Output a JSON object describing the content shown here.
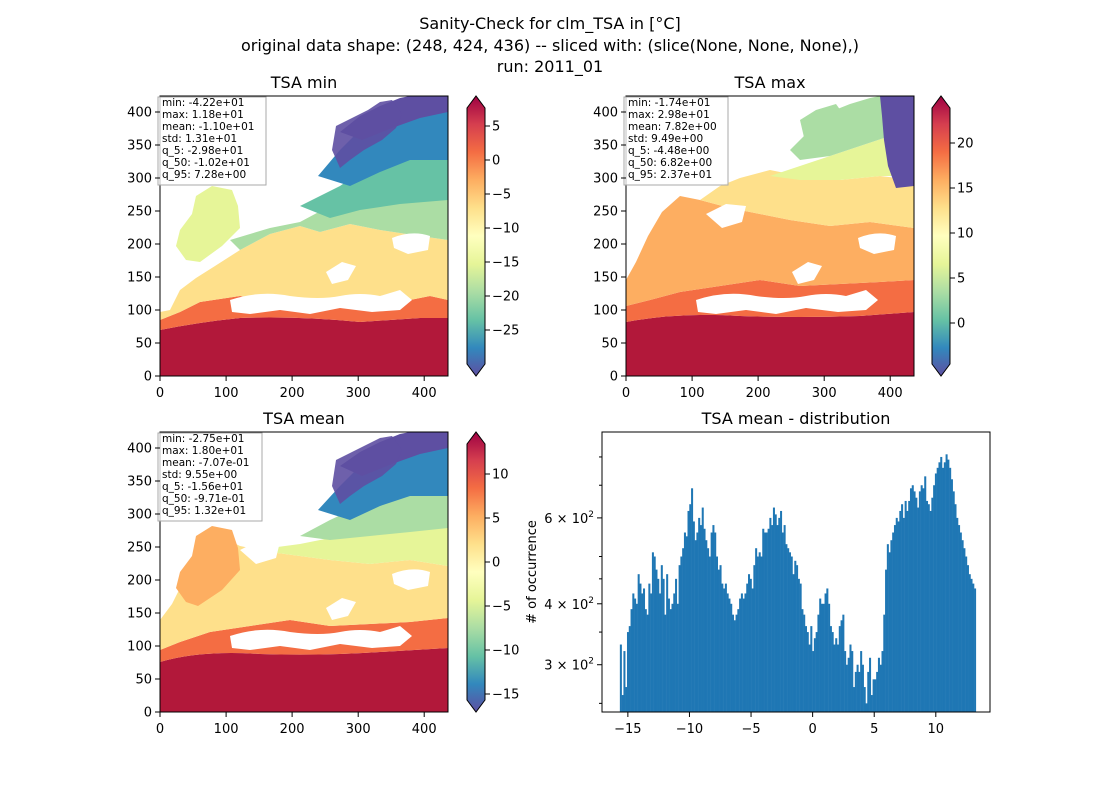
{
  "figure": {
    "title_line1": "Sanity-Check for clm_TSA in [°C]",
    "title_line2": "original data shape: (248, 424, 436) -- sliced with: (slice(None, None, None),)",
    "title_line3": "run: 2011_01"
  },
  "chart_data": [
    {
      "type": "heatmap",
      "title": "TSA min",
      "xticks": [
        0,
        100,
        200,
        300,
        400
      ],
      "yticks": [
        0,
        50,
        100,
        150,
        200,
        250,
        300,
        350,
        400
      ],
      "xlim": [
        0,
        436
      ],
      "ylim": [
        0,
        424
      ],
      "colormap": "Spectral_r",
      "colorbar": {
        "range": [
          -30,
          8
        ],
        "ticks": [
          5,
          0,
          -5,
          -10,
          -15,
          -20,
          -25
        ],
        "ticklabels": [
          "5",
          "0",
          "−5",
          "−10",
          "−15",
          "−20",
          "−25"
        ]
      },
      "stats": [
        "min: -4.22e+01",
        "max: 1.18e+01",
        "mean: -1.10e+01",
        "std: 1.31e+01",
        "q_5: -2.98e+01",
        "q_50: -1.02e+01",
        "q_95: 7.28e+00"
      ]
    },
    {
      "type": "heatmap",
      "title": "TSA max",
      "xticks": [
        0,
        100,
        200,
        300,
        400
      ],
      "yticks": [
        0,
        50,
        100,
        150,
        200,
        250,
        300,
        350,
        400
      ],
      "xlim": [
        0,
        436
      ],
      "ylim": [
        0,
        424
      ],
      "colormap": "Spectral_r",
      "colorbar": {
        "range": [
          -4.5,
          24
        ],
        "ticks": [
          20,
          15,
          10,
          5,
          0
        ],
        "ticklabels": [
          "20",
          "15",
          "10",
          "5",
          "0"
        ]
      },
      "stats": [
        "min: -1.74e+01",
        "max: 2.98e+01",
        "mean: 7.82e+00",
        "std: 9.49e+00",
        "q_5: -4.48e+00",
        "q_50: 6.82e+00",
        "q_95: 2.37e+01"
      ]
    },
    {
      "type": "heatmap",
      "title": "TSA mean",
      "xticks": [
        0,
        100,
        200,
        300,
        400
      ],
      "yticks": [
        0,
        50,
        100,
        150,
        200,
        250,
        300,
        350,
        400
      ],
      "xlim": [
        0,
        436
      ],
      "ylim": [
        0,
        424
      ],
      "colormap": "Spectral_r",
      "colorbar": {
        "range": [
          -16.7,
          14
        ],
        "ticks": [
          10,
          5,
          0,
          -5,
          -10,
          -15
        ],
        "ticklabels": [
          "10",
          "5",
          "0",
          "−5",
          "−10",
          "−15"
        ]
      },
      "stats": [
        "min: -2.75e+01",
        "max: 1.80e+01",
        "mean: -7.07e-01",
        "std: 9.55e+00",
        "q_5: -1.56e+01",
        "q_50: -9.71e-01",
        "q_95: 1.32e+01"
      ]
    },
    {
      "type": "bar",
      "title": "TSA mean - distribution",
      "ylabel": "# of occurrence",
      "xlabel": "",
      "yscale": "log",
      "xlim": [
        -17.1,
        14.4
      ],
      "ylim": [
        240,
        900
      ],
      "xticks": [
        -15,
        -10,
        -5,
        0,
        5,
        10
      ],
      "xticklabels": [
        "−15",
        "−10",
        "−5",
        "0",
        "5",
        "10"
      ],
      "yticks": [
        300,
        400,
        600
      ],
      "yticklabels": [
        "3 × 10",
        "4 × 10",
        "6 × 10"
      ],
      "yticklabel_exponent": "2",
      "bins": {
        "start": -15.65,
        "end": 13.25,
        "count": 200
      },
      "values": [
        330,
        260,
        320,
        270,
        350,
        360,
        390,
        420,
        410,
        400,
        460,
        440,
        420,
        430,
        390,
        380,
        440,
        420,
        510,
        500,
        470,
        450,
        420,
        480,
        450,
        380,
        460,
        410,
        390,
        400,
        420,
        450,
        400,
        480,
        500,
        520,
        560,
        550,
        620,
        640,
        690,
        590,
        540,
        560,
        600,
        580,
        630,
        570,
        540,
        520,
        500,
        560,
        580,
        560,
        500,
        470,
        480,
        440,
        430,
        440,
        420,
        410,
        400,
        380,
        370,
        380,
        390,
        410,
        420,
        410,
        420,
        440,
        460,
        450,
        430,
        480,
        520,
        500,
        510,
        500,
        570,
        560,
        560,
        570,
        600,
        580,
        630,
        610,
        580,
        600,
        620,
        560,
        580,
        530,
        520,
        510,
        500,
        460,
        490,
        480,
        450,
        440,
        390,
        380,
        360,
        350,
        330,
        360,
        320,
        340,
        350,
        380,
        410,
        400,
        400,
        420,
        430,
        400,
        360,
        350,
        330,
        340,
        330,
        360,
        370,
        380,
        320,
        300,
        310,
        330,
        320,
        270,
        290,
        300,
        290,
        320,
        300,
        270,
        250,
        290,
        310,
        260,
        280,
        280,
        290,
        310,
        300,
        320,
        380,
        470,
        530,
        510,
        540,
        560,
        580,
        600,
        590,
        620,
        640,
        600,
        650,
        620,
        650,
        690,
        700,
        680,
        660,
        630,
        680,
        700,
        690,
        730,
        650,
        640,
        620,
        660,
        700,
        740,
        760,
        780,
        800,
        760,
        780,
        810,
        790,
        760,
        720,
        680,
        640,
        600,
        580,
        560,
        540,
        520,
        500,
        480,
        460,
        450,
        440,
        430
      ],
      "color": "#1f77b4"
    }
  ]
}
